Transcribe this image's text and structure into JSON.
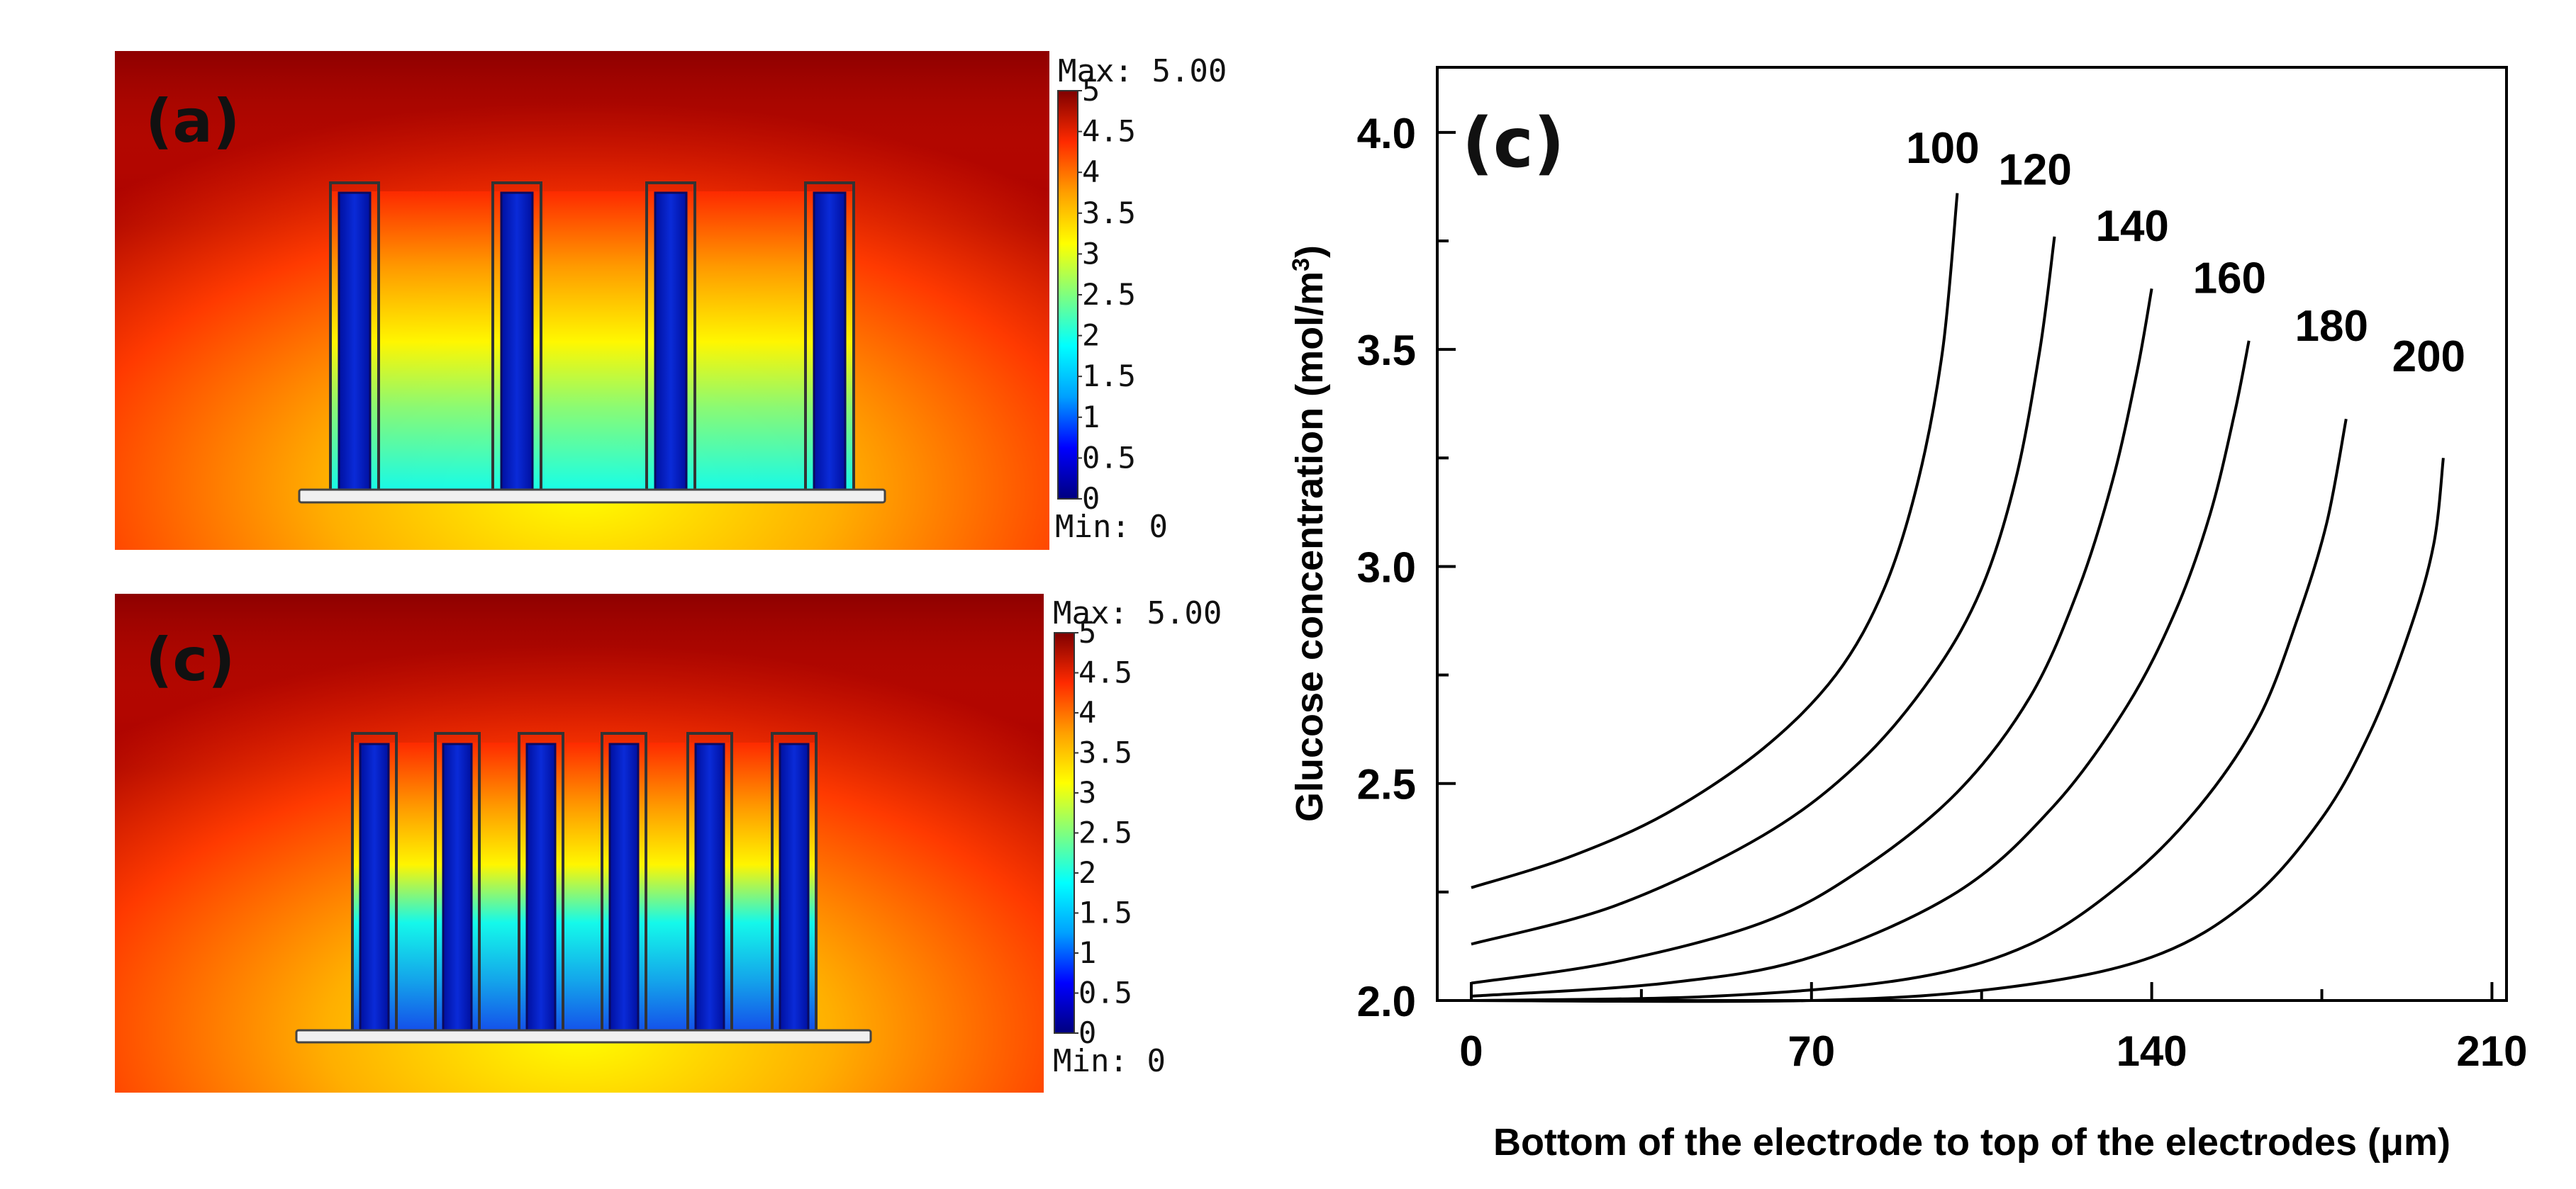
{
  "colorbar": {
    "max_label": "Max: 5.00",
    "min_label": "Min: 0",
    "ticks": [
      "5",
      "4.5",
      "4",
      "3.5",
      "3",
      "2.5",
      "2",
      "1.5",
      "1",
      "0.5",
      "0"
    ],
    "colors": [
      "#00007f",
      "#0000ff",
      "#00a0ff",
      "#00ffff",
      "#7fff7f",
      "#ffff00",
      "#ff9f00",
      "#ff2a00",
      "#7f0000"
    ]
  },
  "panels": [
    {
      "label": "(a)",
      "electrode_count": 4
    },
    {
      "label": "(c)",
      "electrode_count": 6
    }
  ],
  "chart_data": {
    "type": "line",
    "label": "(c)",
    "title": "",
    "xlabel": "Bottom of the electrode to top of the electrodes (μm)",
    "ylabel_main": "Glucose concentration (mol/m",
    "ylabel_sup": "3",
    "ylabel_end": ")",
    "xlim": [
      -7,
      213
    ],
    "ylim": [
      2.0,
      4.15
    ],
    "xticks": [
      0,
      70,
      140,
      210
    ],
    "xtick_labels": [
      "0",
      "70",
      "140",
      "210"
    ],
    "yticks": [
      2.0,
      2.5,
      3.0,
      3.5,
      4.0
    ],
    "ytick_labels": [
      "2.0",
      "2.5",
      "3.0",
      "3.5",
      "4.0"
    ],
    "series": [
      {
        "name": "100",
        "points": [
          [
            0,
            2.26
          ],
          [
            20,
            2.33
          ],
          [
            40,
            2.43
          ],
          [
            60,
            2.58
          ],
          [
            75,
            2.75
          ],
          [
            85,
            2.95
          ],
          [
            92,
            3.2
          ],
          [
            97,
            3.5
          ],
          [
            100,
            3.86
          ]
        ]
      },
      {
        "name": "120",
        "points": [
          [
            0,
            2.13
          ],
          [
            30,
            2.22
          ],
          [
            60,
            2.38
          ],
          [
            80,
            2.55
          ],
          [
            95,
            2.75
          ],
          [
            105,
            2.95
          ],
          [
            112,
            3.2
          ],
          [
            117,
            3.5
          ],
          [
            120,
            3.76
          ]
        ]
      },
      {
        "name": "140",
        "points": [
          [
            0,
            2.04
          ],
          [
            30,
            2.09
          ],
          [
            60,
            2.18
          ],
          [
            80,
            2.3
          ],
          [
            100,
            2.48
          ],
          [
            115,
            2.7
          ],
          [
            125,
            2.95
          ],
          [
            132,
            3.2
          ],
          [
            137,
            3.45
          ],
          [
            140,
            3.64
          ]
        ]
      },
      {
        "name": "160",
        "points": [
          [
            0,
            2.01
          ],
          [
            40,
            2.04
          ],
          [
            70,
            2.1
          ],
          [
            100,
            2.25
          ],
          [
            120,
            2.45
          ],
          [
            135,
            2.68
          ],
          [
            145,
            2.9
          ],
          [
            152,
            3.12
          ],
          [
            157,
            3.35
          ],
          [
            160,
            3.52
          ]
        ]
      },
      {
        "name": "180",
        "points": [
          [
            0,
            2.0
          ],
          [
            50,
            2.01
          ],
          [
            90,
            2.05
          ],
          [
            115,
            2.13
          ],
          [
            135,
            2.28
          ],
          [
            150,
            2.45
          ],
          [
            162,
            2.65
          ],
          [
            170,
            2.88
          ],
          [
            176,
            3.1
          ],
          [
            180,
            3.34
          ]
        ]
      },
      {
        "name": "200",
        "points": [
          [
            0,
            2.0
          ],
          [
            70,
            2.0
          ],
          [
            110,
            2.03
          ],
          [
            140,
            2.1
          ],
          [
            160,
            2.23
          ],
          [
            175,
            2.42
          ],
          [
            185,
            2.62
          ],
          [
            193,
            2.85
          ],
          [
            198,
            3.05
          ],
          [
            200,
            3.25
          ]
        ]
      }
    ],
    "curve_label_positions": [
      [
        97,
        3.93
      ],
      [
        116,
        3.88
      ],
      [
        136,
        3.75
      ],
      [
        156,
        3.63
      ],
      [
        177,
        3.52
      ],
      [
        197,
        3.45
      ]
    ]
  }
}
